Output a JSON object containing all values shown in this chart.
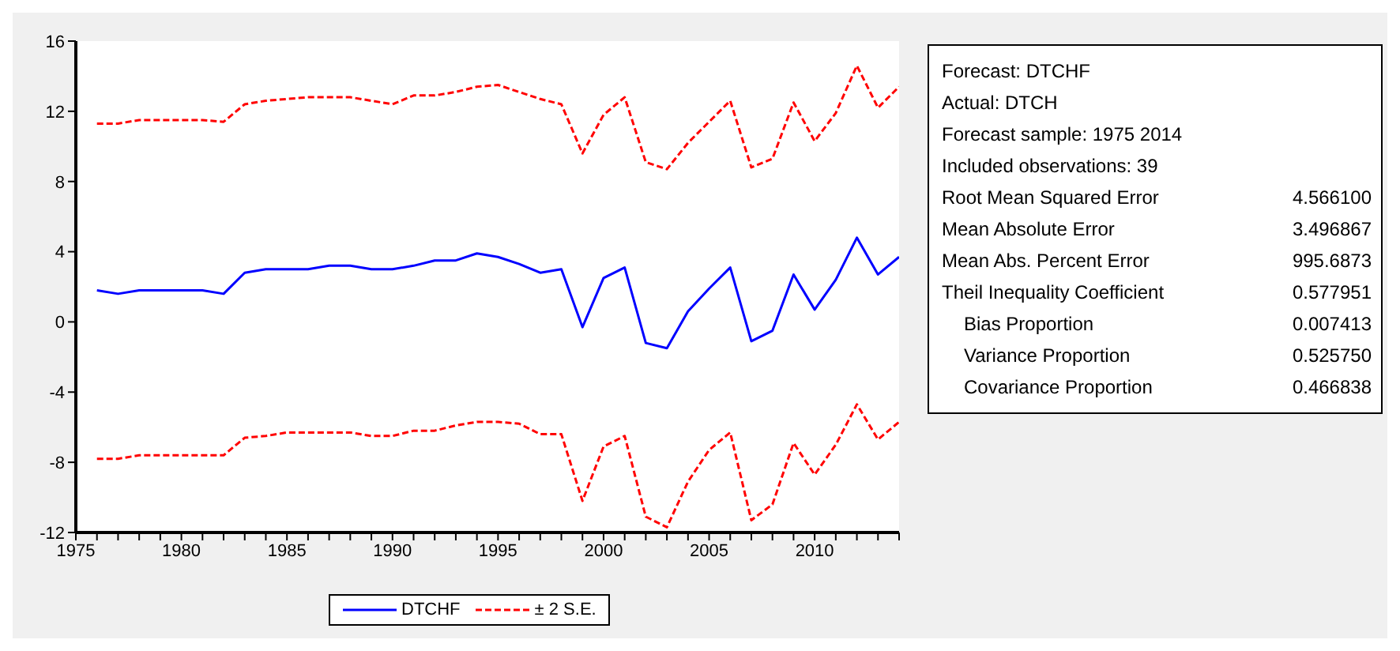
{
  "chart_data": {
    "type": "line",
    "x": [
      1976,
      1977,
      1978,
      1979,
      1980,
      1981,
      1982,
      1983,
      1984,
      1985,
      1986,
      1987,
      1988,
      1989,
      1990,
      1991,
      1992,
      1993,
      1994,
      1995,
      1996,
      1997,
      1998,
      1999,
      2000,
      2001,
      2002,
      2003,
      2004,
      2005,
      2006,
      2007,
      2008,
      2009,
      2010,
      2011,
      2012,
      2013,
      2014
    ],
    "series": [
      {
        "name": "DTCHF",
        "color": "#0000ff",
        "line_style": "solid",
        "values": [
          1.8,
          1.6,
          1.8,
          1.8,
          1.8,
          1.8,
          1.6,
          2.8,
          3.0,
          3.0,
          3.0,
          3.2,
          3.2,
          3.0,
          3.0,
          3.2,
          3.5,
          3.5,
          3.9,
          3.7,
          3.3,
          2.8,
          3.0,
          -0.3,
          2.5,
          3.1,
          -1.2,
          -1.5,
          0.6,
          1.9,
          3.1,
          -1.1,
          -0.5,
          2.7,
          0.7,
          2.4,
          4.8,
          2.7,
          3.7
        ]
      },
      {
        "name": "± 2 S.E.",
        "color": "#ff0000",
        "line_style": "dashed",
        "values": [
          11.3,
          11.3,
          11.5,
          11.5,
          11.5,
          11.5,
          11.4,
          12.4,
          12.6,
          12.7,
          12.8,
          12.8,
          12.8,
          12.6,
          12.4,
          12.9,
          12.9,
          13.1,
          13.4,
          13.5,
          13.1,
          12.7,
          12.4,
          9.6,
          11.8,
          12.8,
          9.1,
          8.7,
          10.2,
          11.4,
          12.6,
          8.8,
          9.3,
          12.5,
          10.3,
          11.9,
          14.6,
          12.2,
          13.4
        ]
      },
      {
        "color": "#ff0000",
        "line_style": "dashed",
        "values": [
          -7.8,
          -7.8,
          -7.6,
          -7.6,
          -7.6,
          -7.6,
          -7.6,
          -6.6,
          -6.5,
          -6.3,
          -6.3,
          -6.3,
          -6.3,
          -6.5,
          -6.5,
          -6.2,
          -6.2,
          -5.9,
          -5.7,
          -5.7,
          -5.8,
          -6.4,
          -6.4,
          -10.2,
          -7.1,
          -6.5,
          -11.1,
          -11.7,
          -9.1,
          -7.3,
          -6.3,
          -11.3,
          -10.4,
          -6.9,
          -8.7,
          -7.0,
          -4.7,
          -6.7,
          -5.7
        ]
      }
    ],
    "xlim": [
      1975,
      2014
    ],
    "xticks": [
      1975,
      {
        "value": 1976,
        "label": null
      },
      {
        "value": 1977,
        "label": null
      },
      {
        "value": 1978,
        "label": null
      },
      {
        "value": 1979,
        "label": null
      },
      1980,
      {
        "value": 1981,
        "label": null
      },
      {
        "value": 1982,
        "label": null
      },
      {
        "value": 1983,
        "label": null
      },
      {
        "value": 1984,
        "label": null
      },
      1985,
      {
        "value": 1986,
        "label": null
      },
      {
        "value": 1987,
        "label": null
      },
      {
        "value": 1988,
        "label": null
      },
      {
        "value": 1989,
        "label": null
      },
      1990,
      {
        "value": 1991,
        "label": null
      },
      {
        "value": 1992,
        "label": null
      },
      {
        "value": 1993,
        "label": null
      },
      {
        "value": 1994,
        "label": null
      },
      1995,
      {
        "value": 1996,
        "label": null
      },
      {
        "value": 1997,
        "label": null
      },
      {
        "value": 1998,
        "label": null
      },
      {
        "value": 1999,
        "label": null
      },
      2000,
      {
        "value": 2001,
        "label": null
      },
      {
        "value": 2002,
        "label": null
      },
      {
        "value": 2003,
        "label": null
      },
      {
        "value": 2004,
        "label": null
      },
      2005,
      {
        "value": 2006,
        "label": null
      },
      {
        "value": 2007,
        "label": null
      },
      {
        "value": 2008,
        "label": null
      },
      {
        "value": 2009,
        "label": null
      },
      2010,
      {
        "value": 2011,
        "label": null
      },
      {
        "value": 2012,
        "label": null
      },
      {
        "value": 2013,
        "label": null
      },
      {
        "value": 2014,
        "label": null
      }
    ],
    "ylim": [
      -12,
      16
    ],
    "yticks": [
      -12,
      -8,
      -4,
      0,
      4,
      8,
      12,
      16
    ],
    "legend": "bottom",
    "marker": "none",
    "annotations": [
      "Forecast: DTCHF",
      "Actual: DTCH",
      "Forecast sample: 1975 2014",
      "Included observations: 39",
      "Root Mean Squared Error",
      "Mean Absolute Error",
      "Mean Abs. Percent Error",
      "Theil Inequality Coefficient",
      "Bias Proportion",
      "Variance Proportion",
      "Covariance Proportion",
      "4.566100",
      "3.496867",
      "995.6873",
      "0.577951",
      "0.007413",
      "0.525750",
      "0.466838"
    ]
  }
}
